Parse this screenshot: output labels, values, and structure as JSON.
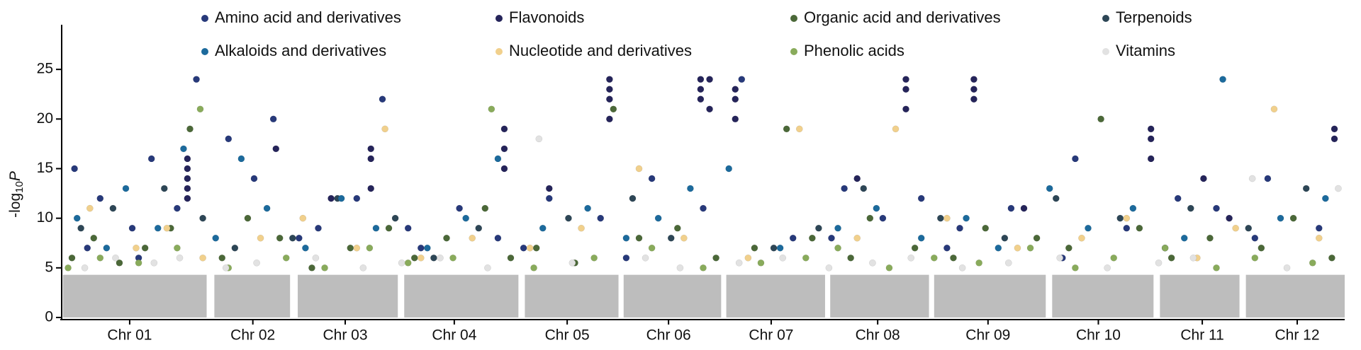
{
  "chart_data": {
    "type": "scatter",
    "y_label_parts": [
      "-log",
      "10",
      "P"
    ],
    "xlim": [
      0,
      100
    ],
    "xticks": [
      {
        "value": 5.3,
        "label": "Chr 01"
      },
      {
        "value": 14.9,
        "label": "Chr 02"
      },
      {
        "value": 22.1,
        "label": "Chr 03"
      },
      {
        "value": 30.6,
        "label": "Chr 04"
      },
      {
        "value": 39.4,
        "label": "Chr 05"
      },
      {
        "value": 47.3,
        "label": "Chr 06"
      },
      {
        "value": 55.3,
        "label": "Chr 07"
      },
      {
        "value": 63.6,
        "label": "Chr 08"
      },
      {
        "value": 72.2,
        "label": "Chr 09"
      },
      {
        "value": 80.8,
        "label": "Chr 10"
      },
      {
        "value": 88.9,
        "label": "Chr 11"
      },
      {
        "value": 96.3,
        "label": "Chr 12"
      }
    ],
    "ylim": [
      0,
      29.5
    ],
    "yticks": [
      0,
      5,
      10,
      15,
      20,
      25
    ],
    "background": {
      "color": "#bdbdbd",
      "spans": [
        [
          0.1,
          11.3
        ],
        [
          11.9,
          17.8
        ],
        [
          18.4,
          26.2
        ],
        [
          26.7,
          35.6
        ],
        [
          36.1,
          43.4
        ],
        [
          43.8,
          51.4
        ],
        [
          51.8,
          59.5
        ],
        [
          59.9,
          67.6
        ],
        [
          68.0,
          76.7
        ],
        [
          77.2,
          85.1
        ],
        [
          85.6,
          91.8
        ],
        [
          92.3,
          100
        ]
      ],
      "values": [
        4.3,
        4.3,
        4.3,
        4.3,
        4.3,
        4.3,
        4.3,
        4.3,
        4.3,
        4.3,
        4.3,
        4.3
      ]
    },
    "series": [
      {
        "name": "Amino acid and derivatives",
        "color": "#27397a",
        "x": [
          1,
          3,
          5.5,
          7,
          9,
          10.5,
          13,
          15,
          16.5,
          20,
          23,
          25,
          28,
          31,
          34,
          38,
          42,
          46,
          50,
          53,
          57,
          61,
          64,
          67,
          70,
          74,
          79,
          83,
          87,
          90,
          94,
          98,
          2,
          6,
          18.5,
          27,
          36,
          44,
          60,
          69,
          78,
          86,
          93
        ],
        "values": [
          15,
          12,
          9,
          16,
          11,
          24,
          18,
          14,
          20,
          9,
          12,
          22,
          7,
          11,
          8,
          12,
          10,
          14,
          11,
          24,
          8,
          13,
          10,
          12,
          9,
          11,
          16,
          9,
          12,
          11,
          14,
          9,
          7,
          6,
          8,
          9,
          7,
          6,
          8,
          7,
          6,
          7,
          8
        ]
      },
      {
        "name": "Flavonoids",
        "color": "#25245a",
        "x": [
          9.8,
          9.8,
          9.8,
          9.8,
          9.8,
          16.7,
          24.1,
          24.1,
          24.1,
          34.5,
          34.5,
          34.5,
          42.7,
          42.7,
          42.7,
          42.7,
          49.8,
          49.8,
          49.8,
          50.5,
          50.5,
          52.5,
          52.5,
          52.5,
          65.8,
          65.8,
          65.8,
          71.1,
          71.1,
          71.1,
          84.9,
          84.9,
          84.9,
          89,
          91,
          99.2,
          99.2,
          21,
          38,
          62,
          75
        ],
        "values": [
          14,
          15,
          16,
          13,
          12,
          17,
          13,
          17,
          16,
          15,
          17,
          19,
          22,
          23,
          24,
          20,
          22,
          23,
          24,
          21,
          24,
          23,
          22,
          20,
          21,
          23,
          24,
          22,
          23,
          24,
          16,
          18,
          19,
          14,
          10,
          18,
          19,
          12,
          13,
          14,
          11
        ]
      },
      {
        "name": "Organic acid and derivatives",
        "color": "#4b6838",
        "x": [
          0.8,
          2.5,
          4.5,
          6.5,
          8.5,
          10,
          12.5,
          14.5,
          17,
          19.5,
          22.5,
          25.5,
          27.5,
          30,
          33,
          35,
          37,
          40,
          43,
          45,
          48,
          51,
          54,
          56.5,
          58.5,
          61.5,
          63,
          66.5,
          69.5,
          72,
          76,
          78.5,
          81,
          84,
          86.5,
          89.5,
          93.5,
          96,
          99
        ],
        "values": [
          6,
          8,
          5.5,
          7,
          9,
          19,
          6,
          10,
          8,
          5,
          7,
          9,
          6,
          8,
          11,
          6,
          7,
          5.5,
          21,
          8,
          9,
          6,
          7,
          19,
          8,
          6,
          10,
          7,
          6,
          9,
          8,
          7,
          20,
          9,
          6,
          8,
          7,
          10,
          6
        ]
      },
      {
        "name": "Terpenoids",
        "color": "#2d4656",
        "x": [
          1.5,
          4,
          8,
          11,
          13.5,
          18,
          21.5,
          26,
          29,
          32.5,
          39.5,
          44.5,
          47.5,
          55.5,
          59,
          62.5,
          68.5,
          73.5,
          77.5,
          82.5,
          88,
          92.5,
          97
        ],
        "values": [
          9,
          11,
          13,
          10,
          7,
          8,
          12,
          10,
          6,
          9,
          10,
          12,
          8,
          7,
          9,
          13,
          10,
          8,
          12,
          10,
          11,
          9,
          13
        ]
      },
      {
        "name": "Alkaloids and derivatives",
        "color": "#1c6a9c",
        "x": [
          1.2,
          3.5,
          5,
          7.5,
          9.5,
          12,
          14,
          16,
          19,
          21.8,
          24.5,
          28.5,
          31.5,
          34,
          37.5,
          41,
          44,
          46.5,
          49,
          52,
          56,
          60.5,
          63.5,
          67,
          70.5,
          73,
          77,
          80,
          83.5,
          87.5,
          90.5,
          95,
          98.5
        ],
        "values": [
          10,
          7,
          13,
          9,
          17,
          8,
          16,
          11,
          7,
          12,
          9,
          7,
          10,
          16,
          9,
          11,
          8,
          10,
          13,
          15,
          7,
          9,
          11,
          8,
          10,
          7,
          13,
          9,
          11,
          8,
          24,
          10,
          12
        ]
      },
      {
        "name": "Nucleotide and derivatives",
        "color": "#f1d08c",
        "x": [
          2.2,
          5.8,
          8.2,
          11,
          15.5,
          18.8,
          23,
          25.2,
          28,
          32,
          36.5,
          40.5,
          45,
          48.5,
          53.5,
          57.5,
          62,
          65,
          69,
          74.5,
          79.5,
          83,
          88.5,
          91.5,
          94.5,
          98
        ],
        "values": [
          11,
          7,
          9,
          6,
          8,
          10,
          7,
          19,
          6,
          8,
          7,
          9,
          15,
          8,
          6,
          19,
          8,
          19,
          10,
          7,
          8,
          10,
          6,
          9,
          21,
          8
        ]
      },
      {
        "name": "Phenolic acids",
        "color": "#89ab5b",
        "x": [
          0.5,
          3,
          6,
          9,
          10.8,
          13,
          17.5,
          20.5,
          24,
          27,
          30.5,
          33.5,
          36.8,
          41.5,
          46,
          50,
          54.5,
          58,
          60.5,
          64.5,
          68,
          71.5,
          75.5,
          79,
          82,
          86,
          90,
          93,
          97.5
        ],
        "values": [
          5,
          6,
          5.5,
          7,
          21,
          5,
          6,
          5,
          7,
          5.5,
          6,
          21,
          5,
          6,
          7,
          5,
          5.5,
          6,
          7,
          5,
          6,
          5.5,
          7,
          5,
          6,
          7,
          5,
          6,
          5.5
        ]
      },
      {
        "name": "Vitamins",
        "color": "#e2e2e2",
        "x": [
          1.8,
          4.2,
          7.2,
          9.2,
          12.8,
          15.2,
          19.8,
          23.5,
          26.5,
          29.5,
          33.2,
          37.2,
          39.8,
          45.5,
          48.2,
          52.8,
          56.2,
          59.8,
          63.2,
          66.2,
          70.2,
          73.8,
          77.8,
          81.5,
          85.5,
          88.2,
          92.8,
          95.5,
          99.5
        ],
        "values": [
          5,
          6,
          5.5,
          6,
          5,
          5.5,
          6,
          5,
          5.5,
          6,
          5,
          18,
          5.5,
          6,
          5,
          5.5,
          6,
          5,
          5.5,
          6,
          5,
          5.5,
          6,
          5,
          5.5,
          6,
          14,
          5,
          13
        ]
      }
    ]
  }
}
